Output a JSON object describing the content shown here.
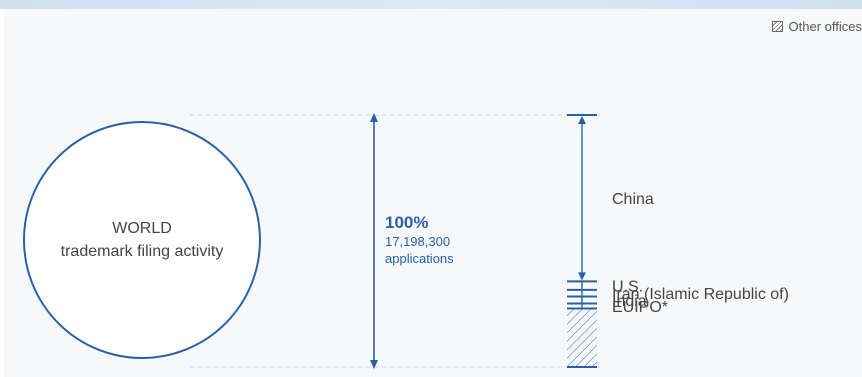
{
  "legend": {
    "other_offices": "Other offices"
  },
  "world": {
    "line1": "WORLD",
    "line2": "trademark filing activity"
  },
  "total": {
    "percent": "100%",
    "value": "17,198,300",
    "unit": "applications"
  },
  "chart_data": {
    "type": "bar",
    "title": "",
    "total_applications": 17198300,
    "segments": [
      {
        "name": "China",
        "value": 66.0
      },
      {
        "name": "U.S.",
        "value": 3.4
      },
      {
        "name": "Iran (Islamic Republic of)",
        "value": 2.6
      },
      {
        "name": "India",
        "value": 2.8
      },
      {
        "name": "EUIPO*",
        "value": 2.0
      },
      {
        "name": "Other offices",
        "value": 23.2
      }
    ]
  },
  "colors": {
    "accent": "#2860a8",
    "label": "#444444",
    "guide": "#bcd3ec"
  }
}
